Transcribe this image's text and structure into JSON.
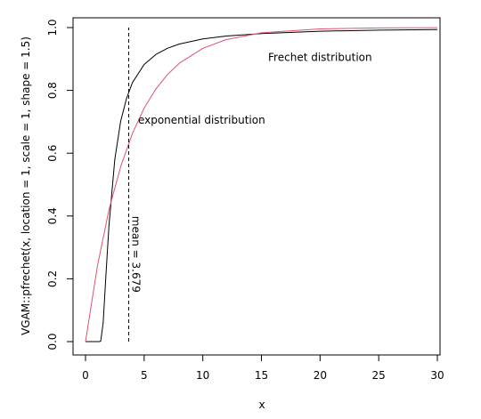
{
  "chart_data": {
    "type": "line",
    "xlabel": "x",
    "ylabel": "VGAM::pfrechet(x, location = 1, scale = 1, shape = 1.5)",
    "xlim": [
      0,
      30
    ],
    "ylim": [
      0,
      1
    ],
    "x_ticks": [
      0,
      5,
      10,
      15,
      20,
      25,
      30
    ],
    "x_tick_labels": [
      "0",
      "5",
      "10",
      "15",
      "20",
      "25",
      "30"
    ],
    "y_ticks": [
      0.0,
      0.2,
      0.4,
      0.6,
      0.8,
      1.0
    ],
    "y_tick_labels": [
      "0.0",
      "0.2",
      "0.4",
      "0.6",
      "0.8",
      "1.0"
    ],
    "grid": false,
    "legend": "none",
    "series": [
      {
        "name": "Frechet distribution",
        "color": "#000000",
        "x": [
          0,
          1.0,
          1.1,
          1.2,
          1.3,
          1.5,
          1.75,
          2.0,
          2.5,
          3.0,
          3.5,
          4.0,
          5.0,
          6.0,
          7.0,
          8.0,
          10.0,
          12.0,
          15.0,
          20.0,
          25.0,
          30.0
        ],
        "y": [
          0,
          0,
          0.0,
          0.0,
          0.0021,
          0.0591,
          0.2151,
          0.3679,
          0.581,
          0.7022,
          0.7749,
          0.825,
          0.8825,
          0.9145,
          0.9342,
          0.9475,
          0.9636,
          0.973,
          0.9811,
          0.9883,
          0.9918,
          0.9936
        ]
      },
      {
        "name": "exponential distribution",
        "color": "#DF536B",
        "x": [
          0,
          1,
          2,
          3,
          4,
          5,
          6,
          7,
          8,
          10,
          12,
          15,
          20,
          25,
          30
        ],
        "y": [
          0,
          0.2382,
          0.4195,
          0.5577,
          0.6631,
          0.7433,
          0.8044,
          0.851,
          0.8865,
          0.9341,
          0.9618,
          0.9832,
          0.9957,
          0.9989,
          0.9997
        ]
      }
    ],
    "vline": {
      "x": 3.679,
      "y0": 0,
      "y1": 1,
      "style": "dashed",
      "color": "#000000"
    },
    "annotations": [
      {
        "text": "Frechet distribution",
        "x": 20,
        "y": 0.905,
        "color": "#000000"
      },
      {
        "text": "exponential distribution",
        "x": 9.9,
        "y": 0.705,
        "color": "#DF536B"
      },
      {
        "text": "mean = 3.679",
        "x": 3.679,
        "y": 0.4,
        "rotation": 90,
        "color": "#000000"
      }
    ]
  }
}
